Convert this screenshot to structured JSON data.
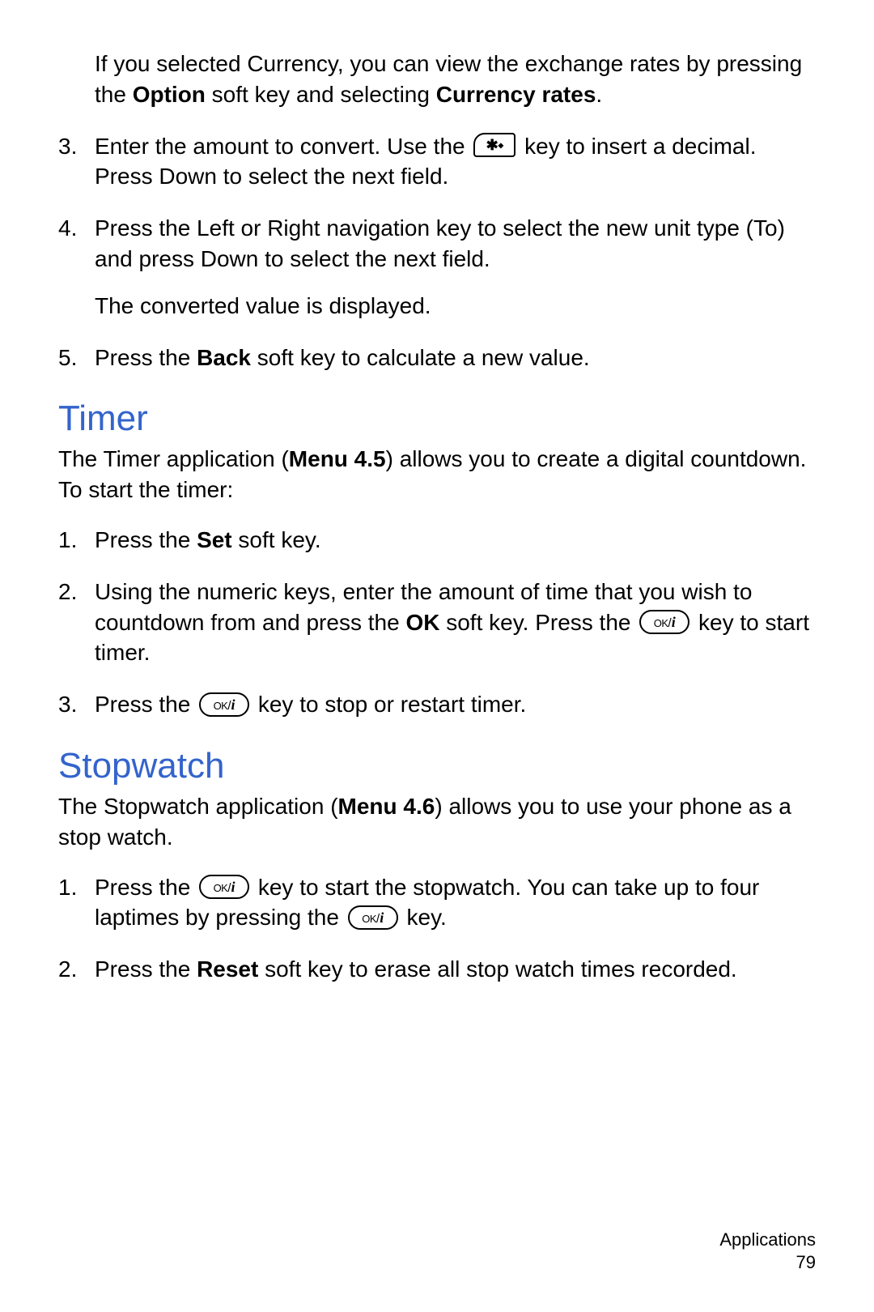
{
  "colors": {
    "heading": "#3364cc",
    "text": "#000000",
    "background": "#ffffff",
    "icon_border": "#000000"
  },
  "typography": {
    "body_fontsize_pt": 21,
    "heading_fontsize_pt": 33,
    "footer_fontsize_pt": 16,
    "font_family": "Arial",
    "heading_weight": "normal"
  },
  "icons": {
    "star_key_label": "✱⬩",
    "ok_key_label_ok": "OK",
    "ok_key_label_slash": "/",
    "ok_key_label_i": "i"
  },
  "intro": {
    "t1": "If you selected Currency, you can view the exchange rates by pressing the ",
    "t2": "Option",
    "t3": " soft key and selecting ",
    "t4": "Currency rates",
    "t5": "."
  },
  "steps_top": {
    "s3a": "Enter the amount to convert. Use the ",
    "s3b": " key to insert a decimal. Press Down to select the next field.",
    "s4a": "Press the Left or Right navigation key to select the new unit type (To) and press Down to select the next field.",
    "s4b": "The converted value is displayed.",
    "s5a": "Press the ",
    "s5b": "Back",
    "s5c": " soft key to calculate a new value."
  },
  "timer": {
    "heading": "Timer",
    "intro1": "The Timer application (",
    "intro2": "Menu 4.5",
    "intro3": ") allows you to create a digital countdown.",
    "intro4": "To start the timer:",
    "s1a": "Press the ",
    "s1b": "Set",
    "s1c": " soft key.",
    "s2a": "Using the numeric keys, enter the amount of time that you wish to countdown from and press the ",
    "s2b": "OK",
    "s2c": " soft key. Press the ",
    "s2d": " key to start timer.",
    "s3a": "Press the ",
    "s3b": " key to stop or restart timer."
  },
  "stopwatch": {
    "heading": "Stopwatch",
    "intro1": "The Stopwatch application (",
    "intro2": "Menu 4.6",
    "intro3": ") allows you to use your phone as a stop watch.",
    "s1a": "Press the ",
    "s1b": " key to start the stopwatch. You can take up to four laptimes by pressing the ",
    "s1c": " key.",
    "s2a": " Press the ",
    "s2b": "Reset",
    "s2c": " soft key to erase all stop watch times recorded."
  },
  "footer": {
    "section": "Applications",
    "page": "79"
  }
}
